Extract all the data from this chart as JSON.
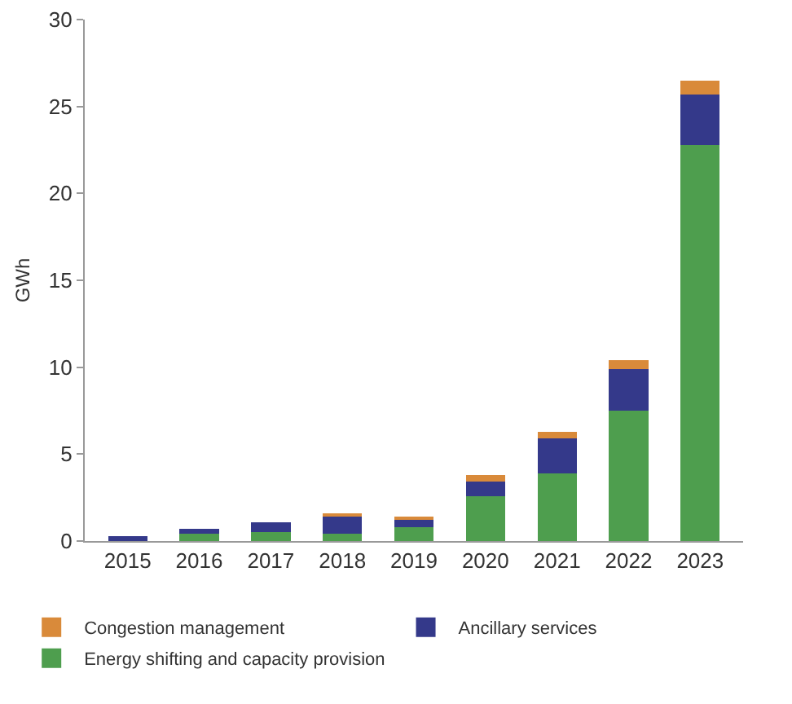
{
  "chart_data": {
    "type": "bar",
    "ylabel": "GWh",
    "categories": [
      "2015",
      "2016",
      "2017",
      "2018",
      "2019",
      "2020",
      "2021",
      "2022",
      "2023"
    ],
    "stacked": true,
    "series": [
      {
        "name": "Energy shifting and capacity provision",
        "color": "#4e9e4e",
        "values": [
          null,
          0.4,
          0.5,
          0.4,
          0.8,
          2.6,
          3.9,
          7.5,
          22.8
        ]
      },
      {
        "name": "Ancillary services",
        "color": "#34398a",
        "values": [
          0.3,
          0.3,
          0.6,
          1.0,
          0.4,
          0.8,
          2.0,
          2.4,
          2.9
        ]
      },
      {
        "name": "Congestion management",
        "color": "#d98a3a",
        "values": [
          0,
          0,
          0,
          0.2,
          0.2,
          0.4,
          0.4,
          0.5,
          0.8
        ]
      }
    ],
    "ylim": [
      0,
      30
    ],
    "yticks": [
      0,
      5,
      10,
      15,
      20,
      25,
      30
    ],
    "grid": false,
    "legend": "bottom"
  }
}
